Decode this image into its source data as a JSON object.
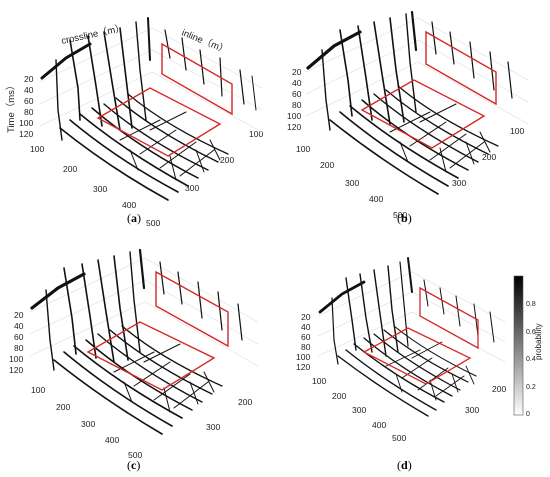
{
  "axes": {
    "crossline_label": "crossline（m）",
    "inline_label": "inline（m）",
    "time_label": "Time（ms）",
    "time_ticks": [
      "20",
      "40",
      "60",
      "80",
      "100",
      "120"
    ],
    "crossline_ticks": [
      "100",
      "200",
      "300",
      "400",
      "500"
    ],
    "inline_ticks_full": [
      "100",
      "200",
      "300"
    ],
    "inline_ticks_short": [
      "200",
      "300"
    ]
  },
  "panels": [
    {
      "id": "a",
      "caption": "a"
    },
    {
      "id": "b",
      "caption": "b"
    },
    {
      "id": "c",
      "caption": "c"
    },
    {
      "id": "d",
      "caption": "d"
    }
  ],
  "colorbar": {
    "label": "probability",
    "ticks": [
      "0",
      "0.2",
      "0.4",
      "0.6",
      "0.8"
    ]
  },
  "colors": {
    "fault": "#111111",
    "highlight_box": "#d62728",
    "grid": "#d9d9d9"
  }
}
